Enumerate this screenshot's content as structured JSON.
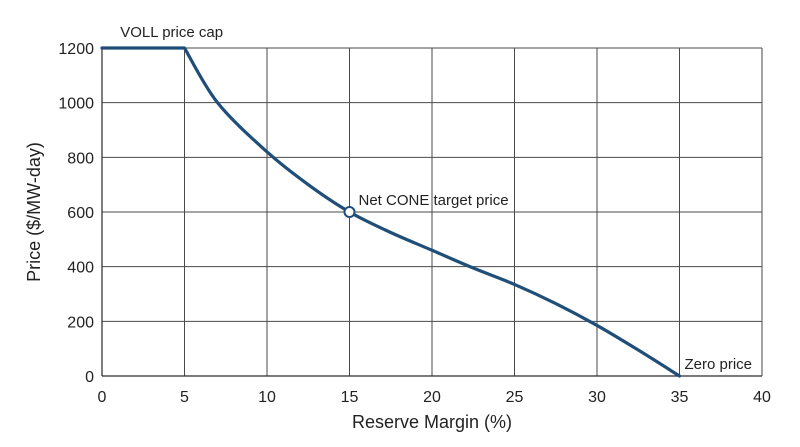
{
  "chart_data": {
    "type": "line",
    "title": "",
    "xlabel": "Reserve Margin (%)",
    "ylabel": "Price ($/MW-day)",
    "xlim": [
      0,
      40
    ],
    "ylim": [
      0,
      1200
    ],
    "x_ticks": [
      0,
      5,
      10,
      15,
      20,
      25,
      30,
      35,
      40
    ],
    "y_ticks": [
      0,
      200,
      400,
      600,
      800,
      1000,
      1200
    ],
    "grid": true,
    "line_color": "#1f4e79",
    "series": [
      {
        "x": [
          0,
          5,
          7,
          10,
          12.5,
          15,
          17.5,
          20,
          22.5,
          25,
          27.5,
          30,
          32.5,
          35
        ],
        "values": [
          1200,
          1200,
          1000,
          820,
          700,
          600,
          525,
          460,
          395,
          335,
          265,
          185,
          95,
          0
        ]
      }
    ],
    "markers": [
      {
        "x": 15,
        "y": 600
      }
    ],
    "annotations": [
      {
        "text": "VOLL price cap",
        "x": 0.5,
        "y": 1200
      },
      {
        "text": "Net CONE target price",
        "x": 15,
        "y": 600
      },
      {
        "text": "Zero price",
        "x": 35,
        "y": 0
      }
    ]
  }
}
